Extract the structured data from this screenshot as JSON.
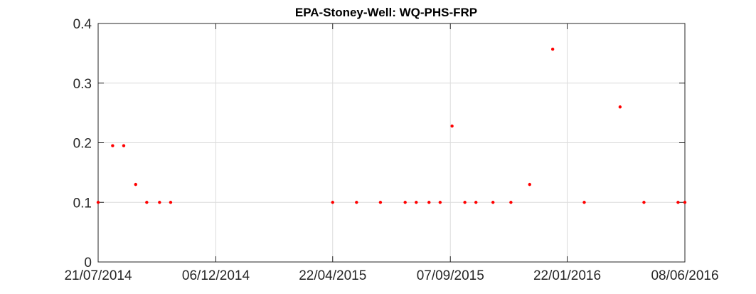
{
  "chart_data": {
    "type": "scatter",
    "title": "EPA-Stoney-Well: WQ-PHS-FRP",
    "xlabel": "",
    "ylabel": "",
    "x_type": "date",
    "xlim": [
      "2014-07-21",
      "2016-06-08"
    ],
    "ylim": [
      0,
      0.4
    ],
    "x_ticks": [
      "2014-07-21",
      "2014-12-06",
      "2015-04-22",
      "2015-09-07",
      "2016-01-22",
      "2016-06-08"
    ],
    "x_tick_labels": [
      "21/07/2014",
      "06/12/2014",
      "22/04/2015",
      "07/09/2015",
      "22/01/2016",
      "08/06/2016"
    ],
    "y_ticks": [
      0,
      0.1,
      0.2,
      0.3,
      0.4
    ],
    "y_tick_labels": [
      "0",
      "0.1",
      "0.2",
      "0.3",
      "0.4"
    ],
    "grid": true,
    "marker_color": "#ff0000",
    "series": [
      {
        "points": [
          {
            "x": "2014-07-21",
            "y": 0.1
          },
          {
            "x": "2014-08-07",
            "y": 0.195
          },
          {
            "x": "2014-08-20",
            "y": 0.195
          },
          {
            "x": "2014-09-03",
            "y": 0.13
          },
          {
            "x": "2014-09-16",
            "y": 0.1
          },
          {
            "x": "2014-10-01",
            "y": 0.1
          },
          {
            "x": "2014-10-14",
            "y": 0.1
          },
          {
            "x": "2015-04-22",
            "y": 0.1
          },
          {
            "x": "2015-05-20",
            "y": 0.1
          },
          {
            "x": "2015-06-17",
            "y": 0.1
          },
          {
            "x": "2015-07-16",
            "y": 0.1
          },
          {
            "x": "2015-07-29",
            "y": 0.1
          },
          {
            "x": "2015-08-13",
            "y": 0.1
          },
          {
            "x": "2015-08-26",
            "y": 0.1
          },
          {
            "x": "2015-09-09",
            "y": 0.228
          },
          {
            "x": "2015-09-24",
            "y": 0.1
          },
          {
            "x": "2015-10-07",
            "y": 0.1
          },
          {
            "x": "2015-10-27",
            "y": 0.1
          },
          {
            "x": "2015-11-17",
            "y": 0.1
          },
          {
            "x": "2015-12-09",
            "y": 0.13
          },
          {
            "x": "2016-01-05",
            "y": 0.357
          },
          {
            "x": "2016-02-11",
            "y": 0.1
          },
          {
            "x": "2016-03-24",
            "y": 0.26
          },
          {
            "x": "2016-04-21",
            "y": 0.1
          },
          {
            "x": "2016-05-31",
            "y": 0.1
          },
          {
            "x": "2016-06-08",
            "y": 0.1
          }
        ]
      }
    ]
  }
}
